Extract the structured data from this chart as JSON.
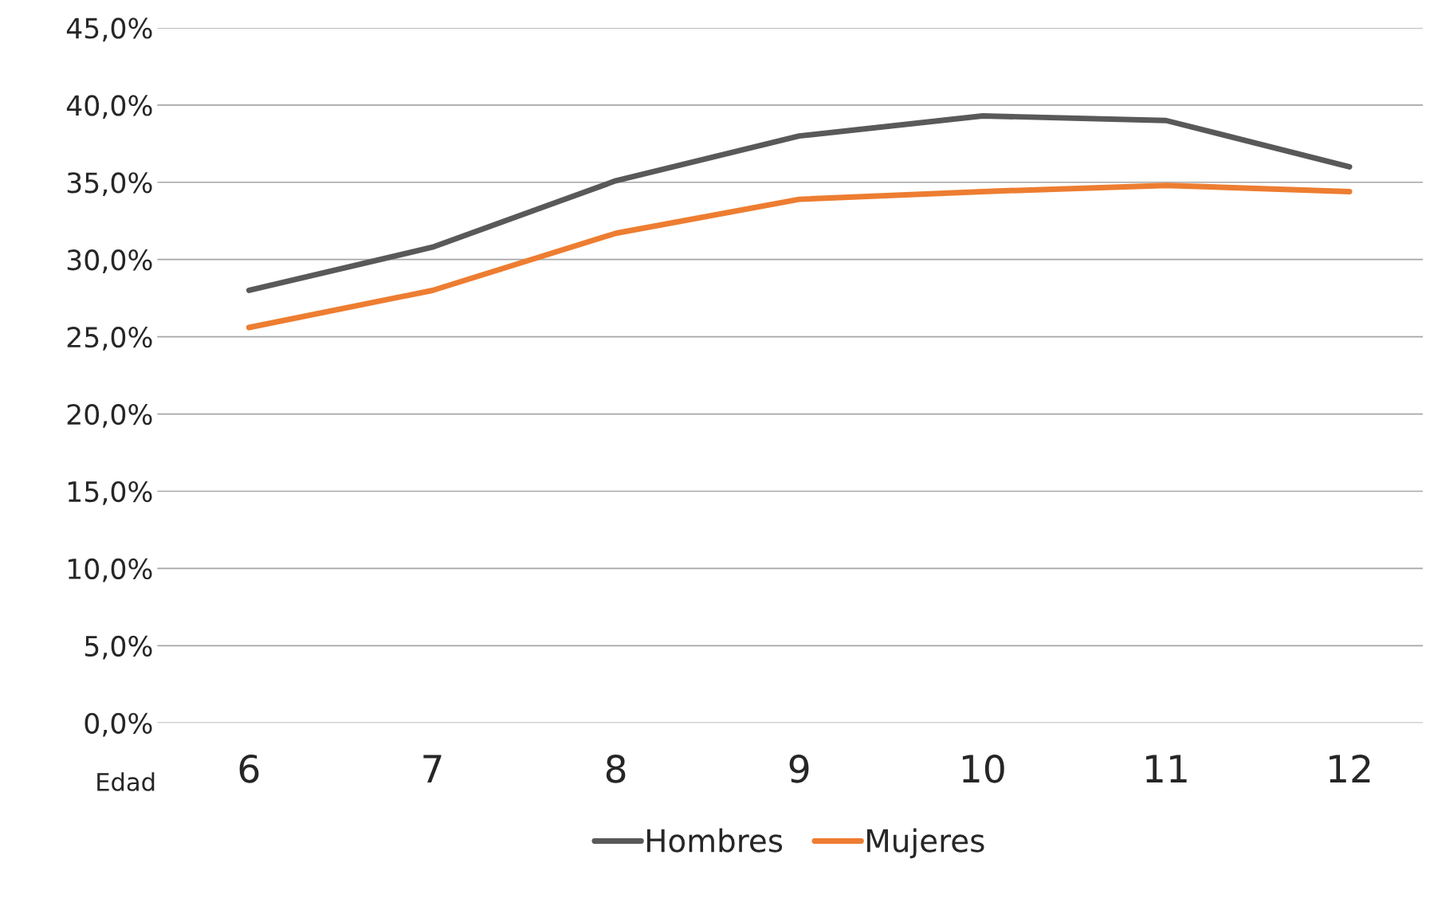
{
  "chart_data": {
    "type": "line",
    "xlabel": "Edad",
    "categories": [
      "6",
      "7",
      "8",
      "9",
      "10",
      "11",
      "12"
    ],
    "series": [
      {
        "name": "Hombres",
        "color": "#595959",
        "values": [
          28.0,
          30.8,
          35.1,
          38.0,
          39.3,
          39.0,
          36.0
        ]
      },
      {
        "name": "Mujeres",
        "color": "#ed7d31",
        "values": [
          25.6,
          28.0,
          31.7,
          33.9,
          34.4,
          34.8,
          34.4
        ]
      }
    ],
    "ylim": [
      0,
      45
    ],
    "yticks": [
      {
        "value": 0,
        "label": "0,0%"
      },
      {
        "value": 5,
        "label": "5,0%"
      },
      {
        "value": 10,
        "label": "10,0%"
      },
      {
        "value": 15,
        "label": "15,0%"
      },
      {
        "value": 20,
        "label": "20,0%"
      },
      {
        "value": 25,
        "label": "25,0%"
      },
      {
        "value": 30,
        "label": "30,0%"
      },
      {
        "value": 35,
        "label": "35,0%"
      },
      {
        "value": 40,
        "label": "40,0%"
      },
      {
        "value": 45,
        "label": "45,0%"
      }
    ],
    "grid": "y",
    "legend": "bottom",
    "marker": "none",
    "line_style": "solid"
  }
}
